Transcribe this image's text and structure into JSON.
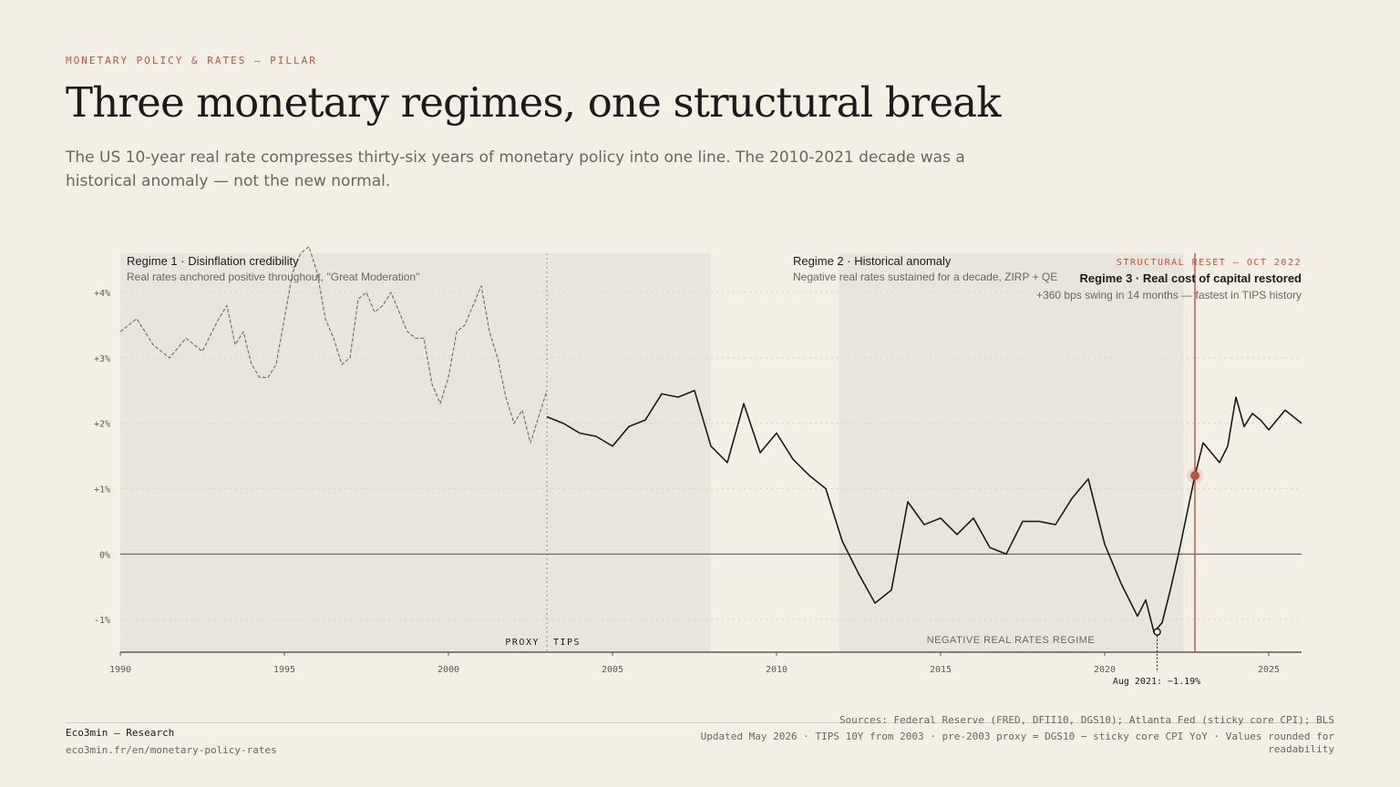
{
  "header": {
    "kicker": "MONETARY POLICY & RATES — PILLAR",
    "title": "Three monetary regimes, one structural break",
    "subtitle": "The US 10-year real rate compresses thirty-six years of monetary policy into one line. The 2010-2021 decade was a historical anomaly — not the new normal."
  },
  "annotations": {
    "regime1_title": "Regime 1 · Disinflation credibility",
    "regime1_note": "Real rates anchored positive throughout, \"Great Moderation\"",
    "regime2_title": "Regime 2 · Historical anomaly",
    "regime2_note": "Negative real rates sustained for a decade, ZIRP + QE",
    "reset_kicker": "STRUCTURAL RESET — OCT 2022",
    "regime3_title": "Regime 3 · Real cost of capital restored",
    "regime3_note": "+360 bps swing in 14 months — fastest in TIPS history",
    "proxy_label": "PROXY",
    "tips_label": "TIPS",
    "negative_label": "NEGATIVE REAL RATES REGIME",
    "min_label": "Aug 2021: −1.19%"
  },
  "footer": {
    "brand": "Eco3min — Research",
    "url": "eco3min.fr/en/monetary-policy-rates",
    "sources": "Sources: Federal Reserve (FRED, DFII10, DGS10); Atlanta Fed (sticky core CPI); BLS",
    "updated": "Updated May 2026 · TIPS 10Y from 2003 · pre-2003 proxy = DGS10 − sticky core CPI YoY · Values rounded for readability"
  },
  "colors": {
    "background": "#f3efe5",
    "shade": "#e9e5dc",
    "line": "#1b1b1b",
    "proxy_line": "#77726b",
    "accent": "#b8553f"
  },
  "chart_data": {
    "type": "line",
    "xlim": [
      1990,
      2026
    ],
    "ylim": [
      -1.5,
      4.6
    ],
    "y_ticks": [
      {
        "value": -1,
        "label": "-1%"
      },
      {
        "value": 0,
        "label": "0%"
      },
      {
        "value": 1,
        "label": "+1%"
      },
      {
        "value": 2,
        "label": "+2%"
      },
      {
        "value": 3,
        "label": "+3%"
      },
      {
        "value": 4,
        "label": "+4%"
      }
    ],
    "x_ticks": [
      1990,
      1995,
      2000,
      2005,
      2010,
      2015,
      2020,
      2025
    ],
    "grid": true,
    "shaded_regions": [
      {
        "from": 1990,
        "to": 2008
      },
      {
        "from": 2011.9,
        "to": 2022.4
      }
    ],
    "events": [
      {
        "x": 2003,
        "name": "proxy-tips-split"
      },
      {
        "x": 2022.75,
        "name": "structural-reset"
      }
    ],
    "highlight_point": {
      "x": 2022.75,
      "y": 1.2
    },
    "min_point": {
      "x": 2021.6,
      "y": -1.19
    },
    "series": [
      {
        "name": "Proxy",
        "style": "dashed",
        "x": [
          1990,
          1990.5,
          1991,
          1991.5,
          1992,
          1992.5,
          1993,
          1993.25,
          1993.5,
          1993.75,
          1994,
          1994.25,
          1994.5,
          1994.75,
          1995,
          1995.25,
          1995.5,
          1995.75,
          1996,
          1996.25,
          1996.5,
          1996.75,
          1997,
          1997.25,
          1997.5,
          1997.75,
          1998,
          1998.25,
          1998.5,
          1998.75,
          1999,
          1999.25,
          1999.5,
          1999.75,
          2000,
          2000.25,
          2000.5,
          2000.75,
          2001,
          2001.25,
          2001.5,
          2001.75,
          2002,
          2002.25,
          2002.5,
          2002.75,
          2003
        ],
        "y": [
          3.4,
          3.6,
          3.2,
          3.0,
          3.3,
          3.1,
          3.6,
          3.8,
          3.2,
          3.4,
          2.9,
          2.7,
          2.7,
          2.9,
          3.6,
          4.3,
          4.6,
          4.7,
          4.3,
          3.6,
          3.3,
          2.9,
          3.0,
          3.9,
          4.0,
          3.7,
          3.8,
          4.0,
          3.7,
          3.4,
          3.3,
          3.3,
          2.6,
          2.3,
          2.7,
          3.4,
          3.5,
          3.8,
          4.1,
          3.4,
          3.0,
          2.4,
          2.0,
          2.2,
          1.7,
          2.1,
          2.5
        ]
      },
      {
        "name": "TIPS",
        "style": "solid",
        "x": [
          2003,
          2003.5,
          2004,
          2004.5,
          2005,
          2005.5,
          2006,
          2006.5,
          2007,
          2007.5,
          2008,
          2008.5,
          2009,
          2009.5,
          2010,
          2010.5,
          2011,
          2011.5,
          2012,
          2012.5,
          2013,
          2013.5,
          2014,
          2014.5,
          2015,
          2015.5,
          2016,
          2016.5,
          2017,
          2017.5,
          2018,
          2018.5,
          2019,
          2019.5,
          2020,
          2020.5,
          2021,
          2021.25,
          2021.5,
          2021.75,
          2022,
          2022.25,
          2022.5,
          2022.75,
          2023,
          2023.25,
          2023.5,
          2023.75,
          2024,
          2024.25,
          2024.5,
          2024.75,
          2025,
          2025.5,
          2026
        ],
        "y": [
          2.1,
          2.0,
          1.85,
          1.8,
          1.65,
          1.95,
          2.05,
          2.45,
          2.4,
          2.5,
          1.65,
          1.4,
          2.3,
          1.55,
          1.85,
          1.45,
          1.2,
          1.0,
          0.2,
          -0.3,
          -0.75,
          -0.55,
          0.8,
          0.45,
          0.55,
          0.3,
          0.55,
          0.1,
          0.0,
          0.5,
          0.5,
          0.45,
          0.85,
          1.15,
          0.15,
          -0.45,
          -0.95,
          -0.7,
          -1.19,
          -1.05,
          -0.55,
          0.0,
          0.6,
          1.2,
          1.7,
          1.55,
          1.4,
          1.65,
          2.4,
          1.95,
          2.15,
          2.05,
          1.9,
          2.2,
          2.0
        ]
      }
    ]
  }
}
